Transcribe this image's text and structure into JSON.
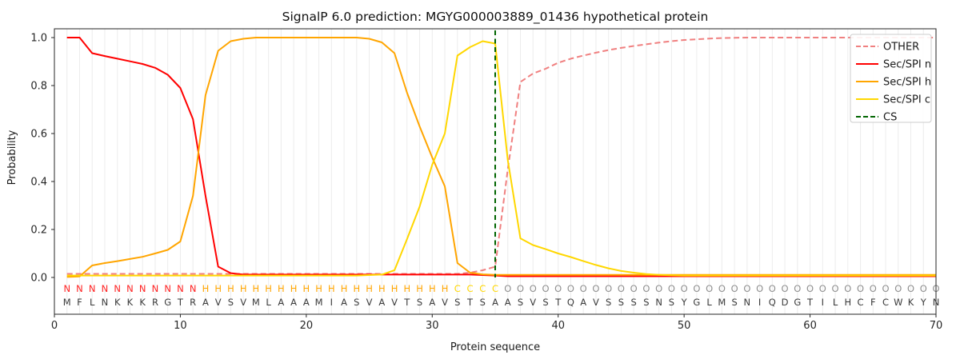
{
  "chart_data": {
    "type": "line",
    "title": "SignalP 6.0 prediction: MGYG000003889_01436 hypothetical protein",
    "xlabel": "Protein sequence",
    "ylabel": "Probability",
    "xlim": [
      0,
      70
    ],
    "ylim": [
      -0.15,
      1.04
    ],
    "x_start": 1,
    "x_tick_labels": [
      "0",
      "10",
      "20",
      "30",
      "40",
      "50",
      "60",
      "70"
    ],
    "x_tick_values": [
      0,
      10,
      20,
      30,
      40,
      50,
      60,
      70
    ],
    "y_tick_labels": [
      "0.0",
      "0.2",
      "0.4",
      "0.6",
      "0.8",
      "1.0"
    ],
    "y_tick_values": [
      0.0,
      0.2,
      0.4,
      0.6,
      0.8,
      1.0
    ],
    "grid": "vertical-line-per-residue",
    "grid_color": "#ececec",
    "legend_position": "upper right",
    "series": [
      {
        "name": "OTHER",
        "color": "#f08080",
        "dashed": true,
        "values": [
          0.015,
          0.015,
          0.015,
          0.015,
          0.015,
          0.015,
          0.015,
          0.015,
          0.015,
          0.015,
          0.015,
          0.015,
          0.015,
          0.015,
          0.015,
          0.015,
          0.015,
          0.015,
          0.015,
          0.015,
          0.015,
          0.015,
          0.015,
          0.015,
          0.015,
          0.015,
          0.015,
          0.015,
          0.015,
          0.015,
          0.015,
          0.015,
          0.02,
          0.03,
          0.045,
          0.45,
          0.815,
          0.85,
          0.87,
          0.895,
          0.912,
          0.925,
          0.937,
          0.948,
          0.957,
          0.965,
          0.972,
          0.979,
          0.985,
          0.99,
          0.993,
          0.996,
          0.998,
          0.999,
          1.0,
          1.0,
          1.0,
          1.0,
          1.0,
          1.0,
          1.0,
          1.0,
          1.0,
          1.0,
          1.0,
          1.0,
          1.0,
          1.0,
          1.0,
          1.0
        ]
      },
      {
        "name": "Sec/SPI n",
        "color": "#ff0000",
        "dashed": false,
        "values": [
          1.0,
          1.0,
          0.935,
          0.923,
          0.912,
          0.901,
          0.89,
          0.874,
          0.845,
          0.79,
          0.66,
          0.34,
          0.045,
          0.018,
          0.012,
          0.012,
          0.012,
          0.012,
          0.012,
          0.012,
          0.012,
          0.012,
          0.012,
          0.012,
          0.012,
          0.012,
          0.012,
          0.012,
          0.012,
          0.012,
          0.012,
          0.012,
          0.012,
          0.01,
          0.008,
          0.005,
          0.005,
          0.005,
          0.005,
          0.005,
          0.005,
          0.005,
          0.005,
          0.005,
          0.005,
          0.005,
          0.005,
          0.005,
          0.005,
          0.005,
          0.005,
          0.005,
          0.005,
          0.005,
          0.005,
          0.005,
          0.005,
          0.005,
          0.005,
          0.005,
          0.005,
          0.005,
          0.005,
          0.005,
          0.005,
          0.005,
          0.005,
          0.005,
          0.005,
          0.005
        ]
      },
      {
        "name": "Sec/SPI h",
        "color": "#ffa500",
        "dashed": false,
        "values": [
          0.002,
          0.004,
          0.05,
          0.06,
          0.068,
          0.077,
          0.086,
          0.1,
          0.115,
          0.15,
          0.34,
          0.76,
          0.945,
          0.985,
          0.995,
          1.0,
          1.0,
          1.0,
          1.0,
          1.0,
          1.0,
          1.0,
          1.0,
          1.0,
          0.995,
          0.98,
          0.935,
          0.77,
          0.63,
          0.5,
          0.38,
          0.06,
          0.02,
          0.013,
          0.011,
          0.011,
          0.011,
          0.011,
          0.011,
          0.011,
          0.011,
          0.011,
          0.011,
          0.011,
          0.011,
          0.011,
          0.011,
          0.011,
          0.011,
          0.011,
          0.011,
          0.011,
          0.011,
          0.011,
          0.011,
          0.011,
          0.011,
          0.011,
          0.011,
          0.011,
          0.011,
          0.011,
          0.011,
          0.011,
          0.011,
          0.011,
          0.011,
          0.011,
          0.011,
          0.011
        ]
      },
      {
        "name": "Sec/SPI c",
        "color": "#ffd700",
        "dashed": false,
        "values": [
          0.008,
          0.008,
          0.008,
          0.008,
          0.008,
          0.008,
          0.008,
          0.008,
          0.008,
          0.008,
          0.008,
          0.008,
          0.008,
          0.008,
          0.008,
          0.008,
          0.008,
          0.008,
          0.008,
          0.008,
          0.008,
          0.008,
          0.008,
          0.008,
          0.01,
          0.012,
          0.03,
          0.16,
          0.295,
          0.47,
          0.6,
          0.925,
          0.96,
          0.985,
          0.975,
          0.49,
          0.163,
          0.135,
          0.118,
          0.1,
          0.085,
          0.068,
          0.052,
          0.038,
          0.027,
          0.02,
          0.014,
          0.011,
          0.009,
          0.008,
          0.008,
          0.008,
          0.008,
          0.008,
          0.008,
          0.008,
          0.008,
          0.008,
          0.008,
          0.008,
          0.008,
          0.008,
          0.008,
          0.008,
          0.008,
          0.008,
          0.008,
          0.008,
          0.008,
          0.008
        ]
      }
    ],
    "cs_marker": {
      "name": "CS",
      "color": "#006400",
      "position": 35,
      "dashed": true
    },
    "legend_items": [
      {
        "label": "OTHER",
        "color": "#f08080",
        "dashed": true
      },
      {
        "label": "Sec/SPI n",
        "color": "#ff0000",
        "dashed": false
      },
      {
        "label": "Sec/SPI h",
        "color": "#ffa500",
        "dashed": false
      },
      {
        "label": "Sec/SPI c",
        "color": "#ffd700",
        "dashed": false
      },
      {
        "label": "CS",
        "color": "#006400",
        "dashed": true
      }
    ],
    "annotation_rows": {
      "region_labels": "NNNNNNNNNNNHHHHHHHHHHHHHHHHHHHHCCCCOOOOOOOOOOOOOOOOOOOOOOOOOOOOOOOOOOO",
      "region_colors": {
        "N": "#ff2020",
        "H": "#ffa500",
        "C": "#ffd700",
        "O": "#8e8e8e"
      },
      "sequence": "MFLNKKKRGTRAVSVMLAAAMIASVAVTSAVSTSAASVSTQAVSSSSNSYGLMSNIQDGTILHCFCWKYN",
      "sequence_color": "#3a3a3a"
    }
  }
}
